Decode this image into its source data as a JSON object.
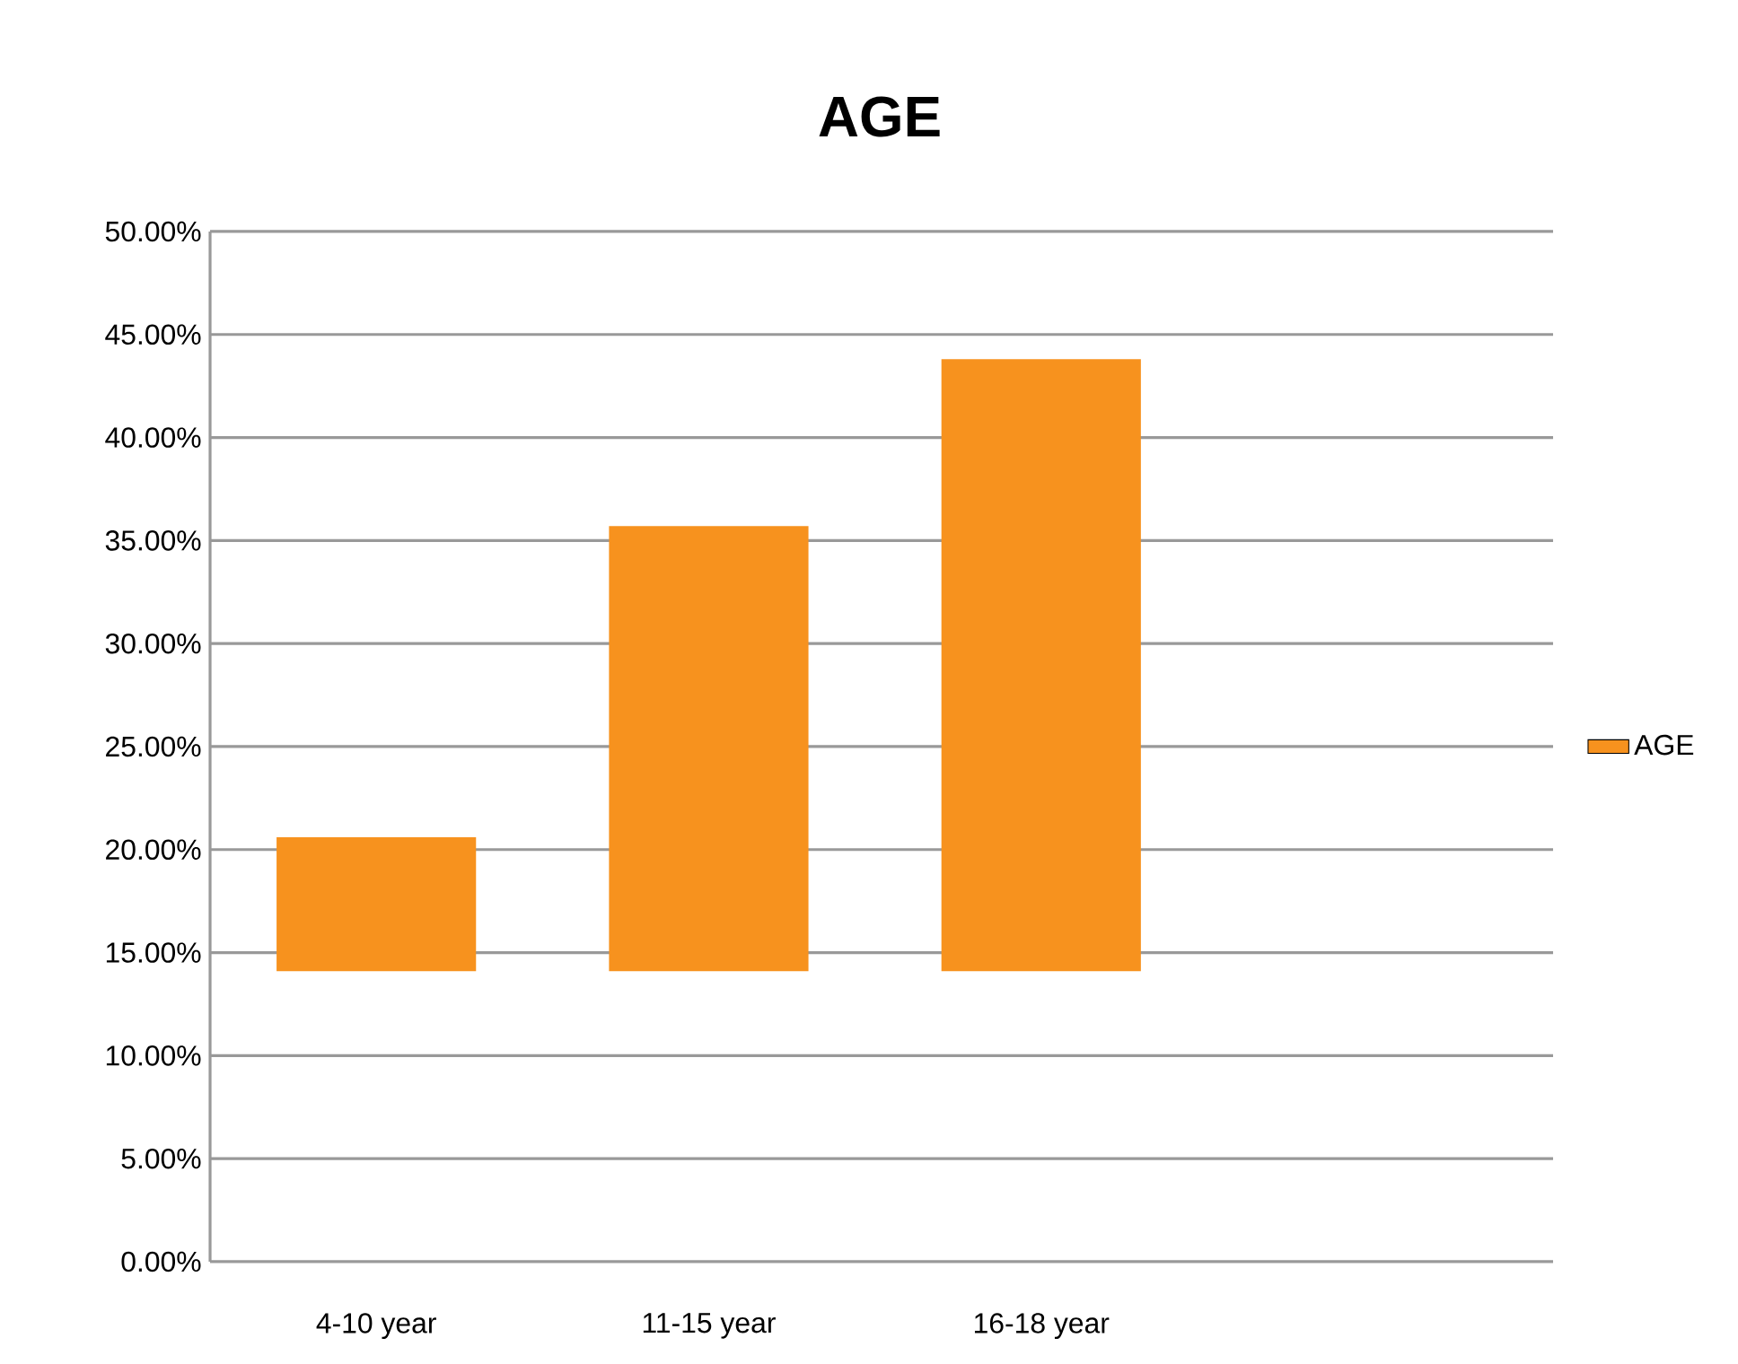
{
  "chart_data": {
    "type": "bar",
    "title": "AGE",
    "categories": [
      "4-10 year",
      "11-15 year",
      "16-18 year"
    ],
    "series": [
      {
        "name": "AGE",
        "color": "#f7921e",
        "values": [
          6.5,
          21.6,
          29.7
        ],
        "base": [
          14.1,
          14.1,
          14.1
        ]
      }
    ],
    "ylim": [
      0,
      50
    ],
    "yticks": [
      {
        "value": 0,
        "label": "0.00%"
      },
      {
        "value": 5,
        "label": "5.00%"
      },
      {
        "value": 10,
        "label": "10.00%"
      },
      {
        "value": 15,
        "label": "15.00%"
      },
      {
        "value": 20,
        "label": "20.00%"
      },
      {
        "value": 25,
        "label": "25.00%"
      },
      {
        "value": 30,
        "label": "30.00%"
      },
      {
        "value": 35,
        "label": "35.00%"
      },
      {
        "value": 40,
        "label": "40.00%"
      },
      {
        "value": 45,
        "label": "45.00%"
      },
      {
        "value": 50,
        "label": "50.00%"
      }
    ],
    "grid": "y",
    "legend": "right"
  }
}
